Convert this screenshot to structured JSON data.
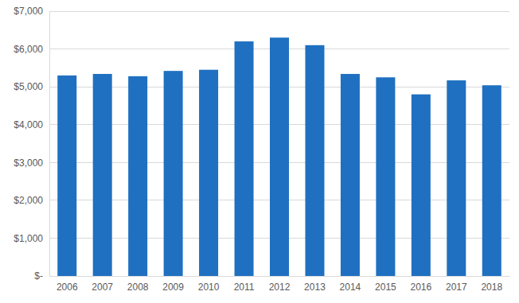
{
  "chart_data": {
    "type": "bar",
    "categories": [
      "2006",
      "2007",
      "2008",
      "2009",
      "2010",
      "2011",
      "2012",
      "2013",
      "2014",
      "2015",
      "2016",
      "2017",
      "2018"
    ],
    "values": [
      5300,
      5340,
      5280,
      5420,
      5450,
      6200,
      6300,
      6100,
      5340,
      5250,
      4800,
      5170,
      5040
    ],
    "color": "#1f70c1",
    "ylim": [
      0,
      7000
    ],
    "yticks": [
      {
        "value": 0,
        "label": "$-"
      },
      {
        "value": 1000,
        "label": "$1,000"
      },
      {
        "value": 2000,
        "label": "$2,000"
      },
      {
        "value": 3000,
        "label": "$3,000"
      },
      {
        "value": 4000,
        "label": "$4,000"
      },
      {
        "value": 5000,
        "label": "$5,000"
      },
      {
        "value": 6000,
        "label": "$6,000"
      },
      {
        "value": 7000,
        "label": "$7,000"
      }
    ],
    "grid": true
  }
}
